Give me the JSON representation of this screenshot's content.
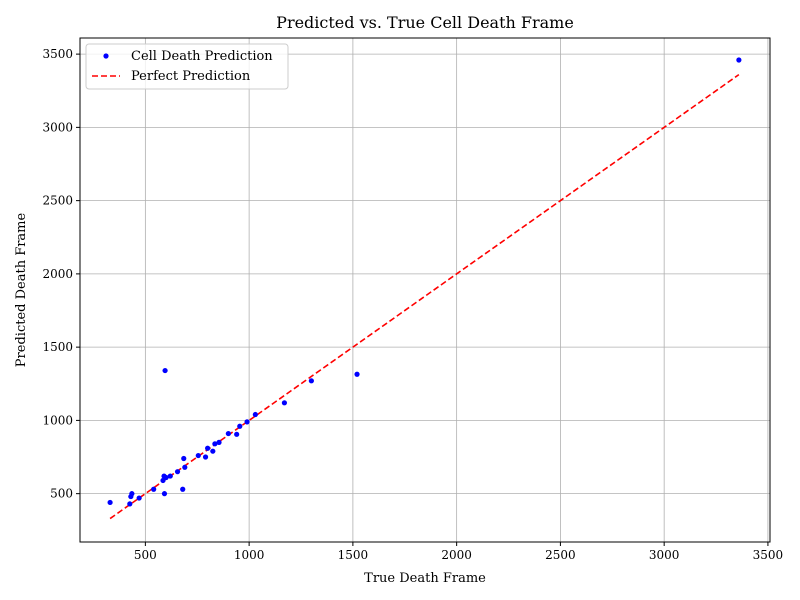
{
  "chart_data": {
    "type": "scatter",
    "title": "Predicted vs. True Cell Death Frame",
    "xlabel": "True Death Frame",
    "ylabel": "Predicted Death Frame",
    "xlim": [
      185,
      3510
    ],
    "ylim": [
      170,
      3610
    ],
    "xticks": [
      500,
      1000,
      1500,
      2000,
      2500,
      3000,
      3500
    ],
    "yticks": [
      500,
      1000,
      1500,
      2000,
      2500,
      3000,
      3500
    ],
    "grid": true,
    "legend_position": "top-left",
    "series": [
      {
        "name": "Cell Death Prediction",
        "kind": "scatter",
        "color": "#0000ff",
        "points": [
          [
            330,
            440
          ],
          [
            425,
            430
          ],
          [
            430,
            480
          ],
          [
            435,
            500
          ],
          [
            470,
            470
          ],
          [
            540,
            530
          ],
          [
            585,
            590
          ],
          [
            590,
            620
          ],
          [
            592,
            500
          ],
          [
            595,
            1340
          ],
          [
            600,
            610
          ],
          [
            620,
            620
          ],
          [
            655,
            650
          ],
          [
            680,
            530
          ],
          [
            685,
            740
          ],
          [
            690,
            680
          ],
          [
            755,
            760
          ],
          [
            790,
            750
          ],
          [
            800,
            810
          ],
          [
            825,
            790
          ],
          [
            835,
            840
          ],
          [
            855,
            850
          ],
          [
            900,
            910
          ],
          [
            940,
            905
          ],
          [
            955,
            960
          ],
          [
            990,
            990
          ],
          [
            1030,
            1040
          ],
          [
            1170,
            1120
          ],
          [
            1300,
            1270
          ],
          [
            1520,
            1315
          ],
          [
            3360,
            3460
          ]
        ]
      },
      {
        "name": "Perfect Prediction",
        "kind": "line",
        "style": "dashed",
        "color": "#ff0000",
        "points": [
          [
            330,
            330
          ],
          [
            3360,
            3360
          ]
        ]
      }
    ]
  }
}
